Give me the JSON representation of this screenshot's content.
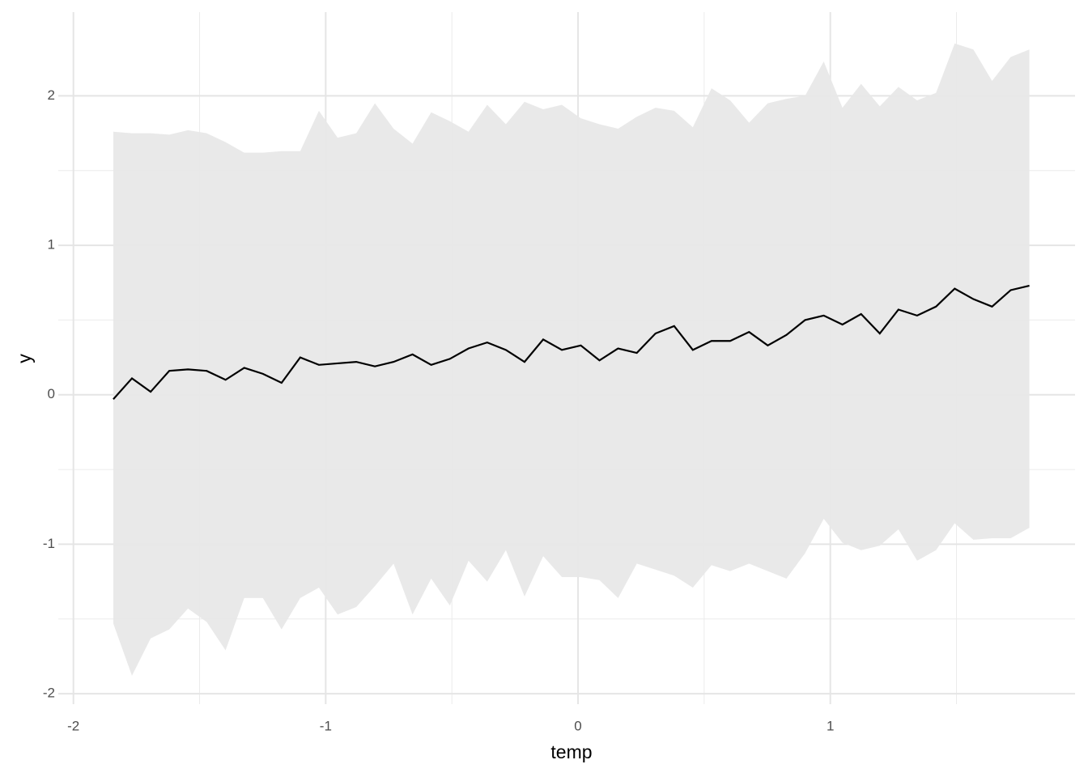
{
  "chart_data": {
    "type": "line",
    "xlabel": "temp",
    "ylabel": "y",
    "x": [
      -1.842,
      -1.768,
      -1.694,
      -1.62,
      -1.546,
      -1.472,
      -1.397,
      -1.323,
      -1.249,
      -1.175,
      -1.101,
      -1.027,
      -0.953,
      -0.879,
      -0.805,
      -0.731,
      -0.656,
      -0.582,
      -0.508,
      -0.434,
      -0.36,
      -0.286,
      -0.212,
      -0.138,
      -0.064,
      0.011,
      0.085,
      0.159,
      0.233,
      0.307,
      0.381,
      0.455,
      0.529,
      0.603,
      0.678,
      0.752,
      0.826,
      0.9,
      0.974,
      1.048,
      1.122,
      1.196,
      1.27,
      1.344,
      1.419,
      1.493,
      1.567,
      1.641,
      1.715,
      1.789
    ],
    "values": [
      -0.03,
      0.11,
      0.02,
      0.16,
      0.17,
      0.16,
      0.1,
      0.18,
      0.14,
      0.08,
      0.25,
      0.2,
      0.21,
      0.22,
      0.19,
      0.22,
      0.27,
      0.2,
      0.24,
      0.31,
      0.35,
      0.3,
      0.22,
      0.37,
      0.3,
      0.33,
      0.23,
      0.31,
      0.28,
      0.41,
      0.46,
      0.3,
      0.36,
      0.36,
      0.42,
      0.33,
      0.4,
      0.5,
      0.53,
      0.47,
      0.54,
      0.41,
      0.57,
      0.53,
      0.59,
      0.71,
      0.64,
      0.59,
      0.7,
      0.73
    ],
    "upper": [
      1.76,
      1.75,
      1.75,
      1.74,
      1.77,
      1.75,
      1.69,
      1.62,
      1.62,
      1.63,
      1.63,
      1.9,
      1.72,
      1.75,
      1.95,
      1.78,
      1.68,
      1.89,
      1.83,
      1.76,
      1.94,
      1.81,
      1.96,
      1.91,
      1.94,
      1.85,
      1.81,
      1.78,
      1.86,
      1.92,
      1.9,
      1.79,
      2.05,
      1.97,
      1.82,
      1.95,
      1.98,
      2.0,
      2.23,
      1.92,
      2.08,
      1.93,
      2.06,
      1.97,
      2.02,
      2.35,
      2.31,
      2.1,
      2.26,
      2.31
    ],
    "lower": [
      -1.53,
      -1.88,
      -1.63,
      -1.57,
      -1.43,
      -1.52,
      -1.71,
      -1.36,
      -1.36,
      -1.57,
      -1.36,
      -1.29,
      -1.47,
      -1.42,
      -1.28,
      -1.13,
      -1.47,
      -1.23,
      -1.41,
      -1.11,
      -1.25,
      -1.04,
      -1.35,
      -1.08,
      -1.22,
      -1.22,
      -1.24,
      -1.36,
      -1.13,
      -1.17,
      -1.21,
      -1.29,
      -1.14,
      -1.18,
      -1.13,
      -1.18,
      -1.23,
      -1.06,
      -0.83,
      -0.99,
      -1.04,
      -1.01,
      -0.9,
      -1.11,
      -1.04,
      -0.86,
      -0.97,
      -0.96,
      -0.96,
      -0.89
    ],
    "color": "#000000",
    "band_color": "#e8e8e8",
    "xlim": [
      -2.06,
      1.97
    ],
    "xticks": [
      -2,
      -1,
      0,
      1
    ],
    "xminor": [
      -1.5,
      -0.5,
      0.5,
      1.5
    ],
    "ylim": [
      -2.07,
      2.56
    ],
    "yticks": [
      -2,
      -1,
      0,
      1,
      2
    ],
    "yminor": [
      -1.5,
      -0.5,
      0.5,
      1.5
    ],
    "grid": true
  }
}
